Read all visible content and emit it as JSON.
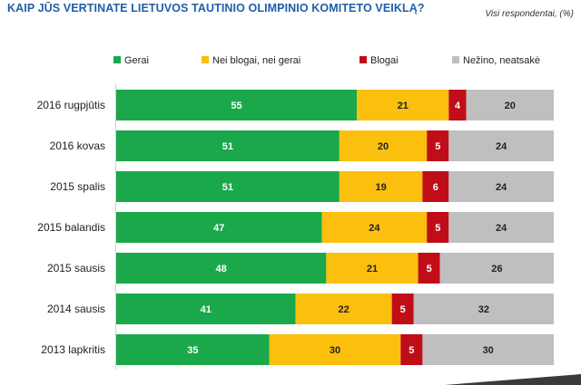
{
  "title": "KAIP JŪS VERTINATE LIETUVOS  TAUTINIO OLIMPINIO KOMITETO VEIKLĄ?",
  "subtitle": "Visi respondentai, (%)",
  "chart_data": {
    "type": "bar",
    "orientation": "horizontal",
    "stacked": true,
    "categories": [
      "2016 rugpjūtis",
      "2016 kovas",
      "2015 spalis",
      "2015 balandis",
      "2015 sausis",
      "2014 sausis",
      "2013 lapkritis"
    ],
    "series": [
      {
        "name": "Gerai",
        "color": "#1aa84b",
        "values": [
          55,
          51,
          51,
          47,
          48,
          41,
          35
        ]
      },
      {
        "name": "Nei blogai, nei gerai",
        "color": "#fbbf0d",
        "values": [
          21,
          20,
          19,
          24,
          21,
          22,
          30
        ]
      },
      {
        "name": "Blogai",
        "color": "#c00d18",
        "values": [
          4,
          5,
          6,
          5,
          5,
          5,
          5
        ]
      },
      {
        "name": "Nežino, neatsakė",
        "color": "#bfbfbf",
        "values": [
          20,
          24,
          24,
          24,
          26,
          32,
          30
        ]
      }
    ],
    "xlim": [
      0,
      100
    ],
    "grid": false,
    "legend": "top"
  }
}
